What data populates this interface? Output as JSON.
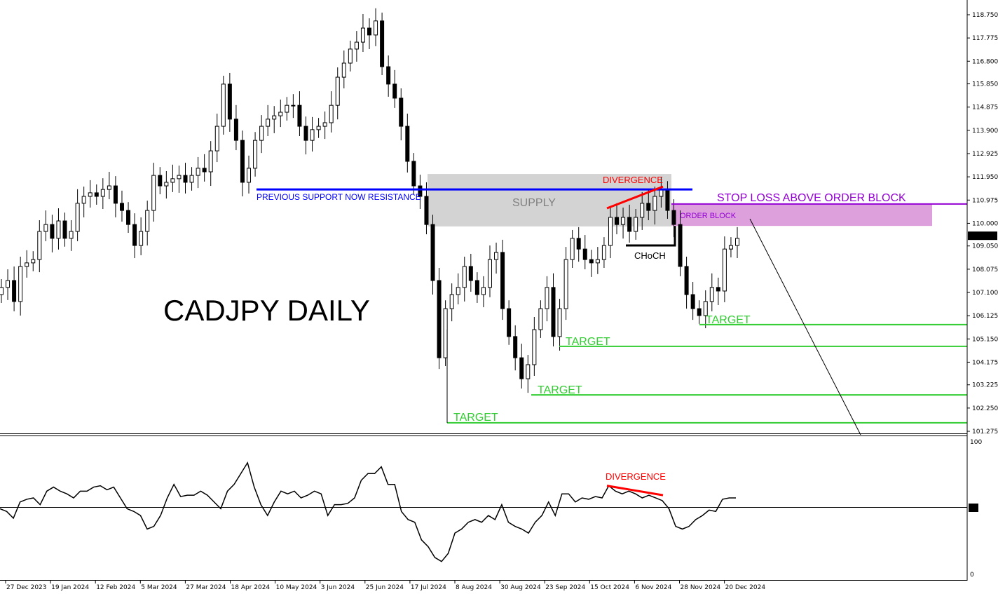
{
  "chart_data": {
    "type": "candlestick",
    "title": "CADJPY DAILY",
    "price_axis": {
      "ticks": [
        "118.750",
        "117.775",
        "116.800",
        "115.850",
        "114.875",
        "113.900",
        "112.925",
        "111.950",
        "110.975",
        "110.000",
        "109.050",
        "108.075",
        "107.100",
        "106.125",
        "105.150",
        "104.175",
        "103.225",
        "102.250",
        "101.275"
      ],
      "range": [
        101.275,
        118.75
      ]
    },
    "current_price": "109.478",
    "date_axis": {
      "ticks": [
        "27 Dec 2023",
        "19 Jan 2024",
        "12 Feb 2024",
        "5 Mar 2024",
        "27 Mar 2024",
        "18 Apr 2024",
        "10 May 2024",
        "3 Jun 2024",
        "25 Jun 2024",
        "17 Jul 2024",
        "8 Aug 2024",
        "30 Aug 2024",
        "23 Sep 2024",
        "15 Oct 2024",
        "6 Nov 2024",
        "28 Nov 2024",
        "20 Dec 2024"
      ]
    },
    "closes": [
      107.31,
      107.6,
      106.72,
      108.19,
      108.34,
      108.48,
      109.66,
      109.95,
      109.37,
      110.1,
      109.37,
      109.66,
      110.84,
      111.13,
      111.28,
      111.13,
      111.42,
      111.57,
      110.84,
      110.54,
      109.95,
      109.07,
      109.66,
      110.54,
      112.01,
      111.57,
      111.72,
      111.87,
      112.01,
      111.72,
      112.01,
      112.31,
      112.16,
      113.04,
      114.07,
      115.84,
      114.37,
      113.48,
      111.72,
      112.31,
      113.48,
      114.07,
      114.37,
      114.51,
      114.66,
      114.95,
      114.95,
      114.07,
      113.48,
      113.93,
      114.07,
      114.22,
      114.95,
      116.13,
      116.72,
      117.31,
      117.6,
      118.19,
      117.9,
      118.49,
      116.57,
      115.84,
      115.25,
      114.07,
      112.6,
      111.57,
      111.13,
      109.95,
      107.6,
      104.36,
      106.42,
      107.01,
      107.31,
      108.19,
      107.6,
      107.01,
      107.31,
      108.48,
      108.78,
      106.42,
      105.25,
      104.36,
      103.48,
      104.07,
      105.54,
      106.42,
      107.31,
      105.25,
      106.42,
      108.48,
      109.37,
      108.92,
      108.48,
      108.34,
      108.48,
      109.07,
      110.25,
      109.95,
      110.25,
      109.66,
      110.25,
      110.84,
      110.54,
      111.13,
      111.42,
      110.54,
      109.95,
      108.19,
      107.01,
      106.42,
      106.13,
      106.72,
      107.31,
      107.16,
      108.92,
      109.07,
      109.37
    ],
    "rsi": {
      "axis_ticks": [
        "100",
        "50",
        "0"
      ],
      "range": [
        0,
        100
      ],
      "level": 50,
      "values": [
        49,
        47,
        42,
        54,
        56,
        57,
        52,
        62,
        65,
        62,
        60,
        57,
        62,
        62,
        65,
        66,
        63,
        65,
        57,
        49,
        47,
        44,
        34,
        36,
        44,
        57,
        67,
        58,
        59,
        59,
        62,
        59,
        54,
        49,
        62,
        67,
        75,
        83,
        65,
        52,
        44,
        54,
        62,
        60,
        62,
        57,
        59,
        62,
        60,
        44,
        52,
        52,
        53,
        57,
        70,
        75,
        75,
        80,
        67,
        67,
        47,
        41,
        39,
        26,
        21,
        13,
        10,
        16,
        31,
        34,
        39,
        41,
        39,
        44,
        41,
        52,
        39,
        36,
        34,
        31,
        39,
        44,
        54,
        44,
        60,
        60,
        54,
        57,
        56,
        58,
        57,
        66,
        62,
        60,
        62,
        60,
        57,
        59,
        57,
        55,
        49,
        36,
        34,
        36,
        41,
        44,
        48,
        47,
        56,
        57,
        57
      ]
    },
    "annotations": {
      "resistance": {
        "label": "PREVIOUS SUPPORT NOW RESISTANCE",
        "price": 111.42,
        "color": "#0000ff"
      },
      "supply": {
        "label": "SUPPLY",
        "top": 112.07,
        "bottom": 109.87,
        "color": "#d3d3d3"
      },
      "divergence_price": {
        "label": "DIVERGENCE",
        "from": 110.63,
        "to": 111.54,
        "color": "#ff0000"
      },
      "divergence_rsi": {
        "label": "DIVERGENCE",
        "from": 66,
        "to": 59,
        "color": "#ff0000"
      },
      "choch": {
        "label": "CHoCH",
        "price": 109.07
      },
      "order_block": {
        "label": "ORDER BLOCK",
        "top": 110.81,
        "bottom": 109.89,
        "color": "#dda0dd"
      },
      "stop_loss": {
        "label": "STOP LOSS ABOVE ORDER BLOCK",
        "price": 110.81,
        "color": "#9400d3"
      },
      "targets": [
        {
          "label": "TARGET",
          "price": 105.75
        },
        {
          "label": "TARGET",
          "price": 104.84
        },
        {
          "label": "TARGET",
          "price": 102.8
        },
        {
          "label": "TARGET",
          "price": 101.63
        }
      ],
      "target_color": "#32cd32"
    }
  }
}
